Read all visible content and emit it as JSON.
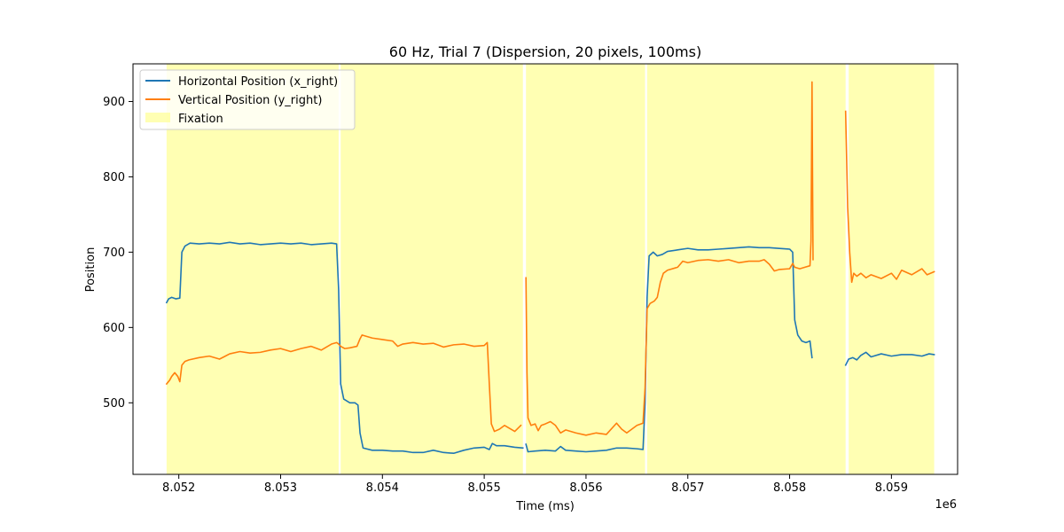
{
  "chart_data": {
    "type": "line",
    "title": "60 Hz, Trial 7 (Dispersion, 20 pixels, 100ms)",
    "xlabel": "Time (ms)",
    "ylabel": "Position",
    "x_offset_label": "1e6",
    "xlim": [
      8.05155,
      8.05965
    ],
    "ylim": [
      405,
      950
    ],
    "x_ticks": [
      8.052,
      8.053,
      8.054,
      8.055,
      8.056,
      8.057,
      8.058,
      8.059
    ],
    "x_tick_labels": [
      "8.052",
      "8.053",
      "8.054",
      "8.055",
      "8.056",
      "8.057",
      "8.058",
      "8.059"
    ],
    "y_ticks": [
      500,
      600,
      700,
      800,
      900
    ],
    "y_tick_labels": [
      "500",
      "600",
      "700",
      "800",
      "900"
    ],
    "grid": false,
    "legend_position": "upper-left",
    "legend": [
      {
        "label": "Horizontal Position (x_right)",
        "kind": "line",
        "color": "#1f77b4"
      },
      {
        "label": "Vertical Position (y_right)",
        "kind": "line",
        "color": "#ff7f0e"
      },
      {
        "label": "Fixation",
        "kind": "patch",
        "color": "#ffff99"
      }
    ],
    "fixation_spans": [
      [
        8.05188,
        8.05357
      ],
      [
        8.05359,
        8.05538
      ],
      [
        8.05541,
        8.05658
      ],
      [
        8.0566,
        8.05855
      ],
      [
        8.05858,
        8.05942
      ]
    ],
    "series": [
      {
        "name": "Horizontal Position (x_right)",
        "color": "#1f77b4",
        "segments": [
          [
            [
              8.05188,
              633
            ],
            [
              8.0519,
              638
            ],
            [
              8.05193,
              640
            ],
            [
              8.05197,
              638
            ],
            [
              8.05201,
              639
            ],
            [
              8.05203,
              700
            ],
            [
              8.05206,
              708
            ],
            [
              8.05211,
              712
            ],
            [
              8.0522,
              711
            ],
            [
              8.0523,
              712
            ],
            [
              8.0524,
              711
            ],
            [
              8.0525,
              713
            ],
            [
              8.0526,
              711
            ],
            [
              8.0527,
              712
            ],
            [
              8.0528,
              710
            ],
            [
              8.0529,
              711
            ],
            [
              8.053,
              712
            ],
            [
              8.0531,
              711
            ],
            [
              8.0532,
              712
            ],
            [
              8.0533,
              710
            ],
            [
              8.0534,
              711
            ],
            [
              8.0535,
              712
            ],
            [
              8.05355,
              711
            ],
            [
              8.05357,
              650
            ],
            [
              8.05359,
              525
            ],
            [
              8.05362,
              505
            ],
            [
              8.05368,
              500
            ],
            [
              8.05373,
              500
            ],
            [
              8.05376,
              497
            ],
            [
              8.05378,
              460
            ],
            [
              8.05381,
              440
            ],
            [
              8.0539,
              437
            ],
            [
              8.054,
              437
            ],
            [
              8.0541,
              436
            ],
            [
              8.0542,
              436
            ],
            [
              8.0543,
              434
            ],
            [
              8.0544,
              434
            ],
            [
              8.0545,
              437
            ],
            [
              8.0546,
              434
            ],
            [
              8.0547,
              433
            ],
            [
              8.0548,
              437
            ],
            [
              8.0549,
              440
            ],
            [
              8.055,
              441
            ],
            [
              8.05505,
              438
            ],
            [
              8.05508,
              446
            ],
            [
              8.05512,
              443
            ],
            [
              8.0552,
              443
            ],
            [
              8.0553,
              441
            ],
            [
              8.05538,
              440
            ]
          ],
          [
            [
              8.05541,
              445
            ],
            [
              8.05543,
              435
            ],
            [
              8.0555,
              436
            ],
            [
              8.0556,
              437
            ],
            [
              8.0557,
              436
            ],
            [
              8.05575,
              442
            ],
            [
              8.0558,
              437
            ],
            [
              8.0559,
              436
            ],
            [
              8.056,
              435
            ],
            [
              8.0561,
              436
            ],
            [
              8.0562,
              437
            ],
            [
              8.0563,
              440
            ],
            [
              8.0564,
              440
            ],
            [
              8.0565,
              439
            ],
            [
              8.05656,
              438
            ],
            [
              8.05658,
              500
            ],
            [
              8.0566,
              640
            ],
            [
              8.05662,
              695
            ],
            [
              8.05666,
              700
            ],
            [
              8.0567,
              695
            ],
            [
              8.05675,
              697
            ],
            [
              8.0568,
              701
            ],
            [
              8.0569,
              703
            ],
            [
              8.057,
              705
            ],
            [
              8.0571,
              703
            ],
            [
              8.0572,
              703
            ],
            [
              8.0573,
              704
            ],
            [
              8.0574,
              705
            ],
            [
              8.0575,
              706
            ],
            [
              8.0576,
              707
            ],
            [
              8.0577,
              706
            ],
            [
              8.0578,
              706
            ],
            [
              8.0579,
              705
            ],
            [
              8.058,
              704
            ],
            [
              8.05803,
              700
            ],
            [
              8.05805,
              610
            ],
            [
              8.05808,
              590
            ],
            [
              8.05812,
              582
            ],
            [
              8.05816,
              580
            ],
            [
              8.0582,
              582
            ],
            [
              8.05822,
              560
            ]
          ],
          [
            [
              8.05855,
              550
            ],
            [
              8.05858,
              558
            ],
            [
              8.05862,
              560
            ],
            [
              8.05866,
              557
            ],
            [
              8.0587,
              563
            ],
            [
              8.05875,
              567
            ],
            [
              8.0588,
              561
            ],
            [
              8.0589,
              565
            ],
            [
              8.059,
              562
            ],
            [
              8.0591,
              564
            ],
            [
              8.0592,
              564
            ],
            [
              8.0593,
              562
            ],
            [
              8.05937,
              565
            ],
            [
              8.05942,
              564
            ]
          ]
        ]
      },
      {
        "name": "Vertical Position (y_right)",
        "color": "#ff7f0e",
        "segments": [
          [
            [
              8.05188,
              525
            ],
            [
              8.05191,
              530
            ],
            [
              8.05193,
              535
            ],
            [
              8.05196,
              540
            ],
            [
              8.05199,
              535
            ],
            [
              8.05201,
              528
            ],
            [
              8.05203,
              550
            ],
            [
              8.05206,
              555
            ],
            [
              8.0521,
              557
            ],
            [
              8.0522,
              560
            ],
            [
              8.0523,
              562
            ],
            [
              8.0524,
              558
            ],
            [
              8.0525,
              565
            ],
            [
              8.0526,
              568
            ],
            [
              8.0527,
              566
            ],
            [
              8.0528,
              567
            ],
            [
              8.0529,
              570
            ],
            [
              8.053,
              572
            ],
            [
              8.0531,
              568
            ],
            [
              8.0532,
              572
            ],
            [
              8.0533,
              575
            ],
            [
              8.0534,
              570
            ],
            [
              8.0535,
              578
            ],
            [
              8.05355,
              580
            ],
            [
              8.05357,
              578
            ],
            [
              8.05359,
              575
            ],
            [
              8.05363,
              572
            ],
            [
              8.05368,
              573
            ],
            [
              8.05375,
              575
            ],
            [
              8.05378,
              585
            ],
            [
              8.0538,
              590
            ],
            [
              8.0539,
              586
            ],
            [
              8.054,
              584
            ],
            [
              8.0541,
              582
            ],
            [
              8.05415,
              575
            ],
            [
              8.0542,
              578
            ],
            [
              8.0543,
              580
            ],
            [
              8.0544,
              578
            ],
            [
              8.0545,
              579
            ],
            [
              8.0546,
              574
            ],
            [
              8.0547,
              577
            ],
            [
              8.0548,
              578
            ],
            [
              8.0549,
              575
            ],
            [
              8.055,
              576
            ],
            [
              8.05503,
              580
            ],
            [
              8.05505,
              525
            ],
            [
              8.05507,
              472
            ],
            [
              8.0551,
              462
            ],
            [
              8.05515,
              465
            ],
            [
              8.0552,
              470
            ],
            [
              8.05525,
              466
            ],
            [
              8.0553,
              462
            ],
            [
              8.05536,
              470
            ]
          ],
          [
            [
              8.05541,
              666
            ],
            [
              8.05542,
              540
            ],
            [
              8.05543,
              480
            ],
            [
              8.05546,
              470
            ],
            [
              8.0555,
              472
            ],
            [
              8.05553,
              463
            ],
            [
              8.05556,
              470
            ],
            [
              8.0556,
              472
            ],
            [
              8.05565,
              475
            ],
            [
              8.0557,
              470
            ],
            [
              8.05575,
              460
            ],
            [
              8.0558,
              464
            ],
            [
              8.0559,
              460
            ],
            [
              8.056,
              457
            ],
            [
              8.0561,
              460
            ],
            [
              8.0562,
              458
            ],
            [
              8.0563,
              473
            ],
            [
              8.05635,
              465
            ],
            [
              8.0564,
              460
            ],
            [
              8.0565,
              470
            ],
            [
              8.05656,
              473
            ],
            [
              8.05658,
              520
            ],
            [
              8.0566,
              625
            ],
            [
              8.05663,
              632
            ],
            [
              8.05667,
              635
            ],
            [
              8.0567,
              640
            ],
            [
              8.05673,
              660
            ],
            [
              8.05676,
              672
            ],
            [
              8.0568,
              676
            ],
            [
              8.0569,
              680
            ],
            [
              8.05695,
              688
            ],
            [
              8.057,
              686
            ],
            [
              8.0571,
              689
            ],
            [
              8.0572,
              690
            ],
            [
              8.0573,
              688
            ],
            [
              8.0574,
              690
            ],
            [
              8.0575,
              686
            ],
            [
              8.0576,
              688
            ],
            [
              8.0577,
              688
            ],
            [
              8.05775,
              690
            ],
            [
              8.0578,
              684
            ],
            [
              8.05785,
              675
            ],
            [
              8.0579,
              677
            ],
            [
              8.058,
              678
            ],
            [
              8.05803,
              685
            ],
            [
              8.05805,
              680
            ],
            [
              8.0581,
              678
            ],
            [
              8.05815,
              680
            ],
            [
              8.0582,
              682
            ],
            [
              8.05821,
              715
            ],
            [
              8.05822,
              926
            ],
            [
              8.05823,
              690
            ]
          ],
          [
            [
              8.05855,
              887
            ],
            [
              8.05857,
              760
            ],
            [
              8.05859,
              700
            ],
            [
              8.05861,
              660
            ],
            [
              8.05863,
              672
            ],
            [
              8.05866,
              668
            ],
            [
              8.0587,
              672
            ],
            [
              8.05875,
              666
            ],
            [
              8.0588,
              670
            ],
            [
              8.0589,
              665
            ],
            [
              8.059,
              672
            ],
            [
              8.05905,
              664
            ],
            [
              8.0591,
              676
            ],
            [
              8.0592,
              670
            ],
            [
              8.0593,
              678
            ],
            [
              8.05935,
              670
            ],
            [
              8.05942,
              674
            ]
          ]
        ]
      }
    ]
  }
}
